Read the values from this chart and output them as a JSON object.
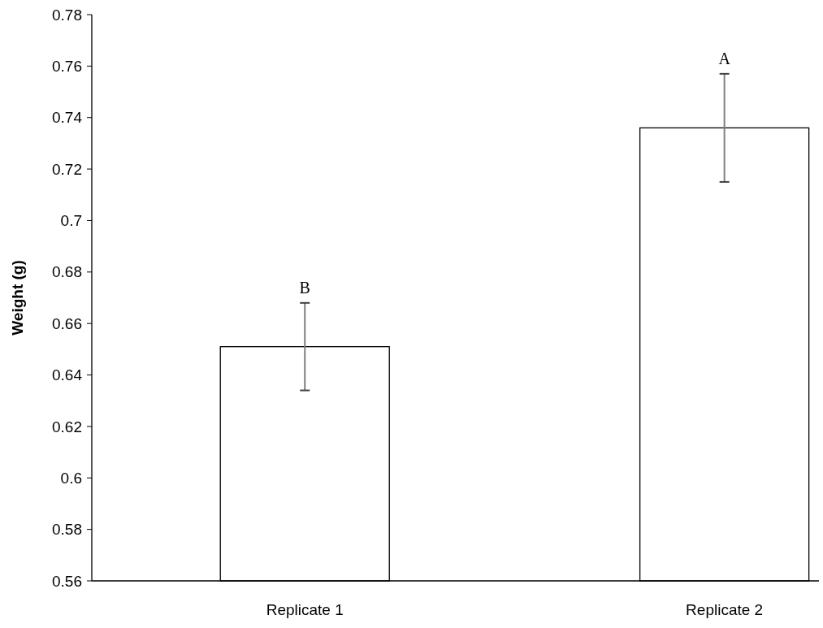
{
  "chart_data": {
    "type": "bar",
    "ylabel": "Weight (g)",
    "categories": [
      "Replicate 1",
      "Replicate 2"
    ],
    "values": [
      0.651,
      0.736
    ],
    "color": "#ffffff",
    "errors": [
      0.017,
      0.021
    ],
    "ylim": [
      0.56,
      0.78
    ],
    "yticks": [
      0.56,
      0.58,
      0.6,
      0.62,
      0.64,
      0.66,
      0.68,
      0.7,
      0.72,
      0.74,
      0.76,
      0.78
    ],
    "annotations": [
      "B",
      "A"
    ],
    "grid": false
  }
}
